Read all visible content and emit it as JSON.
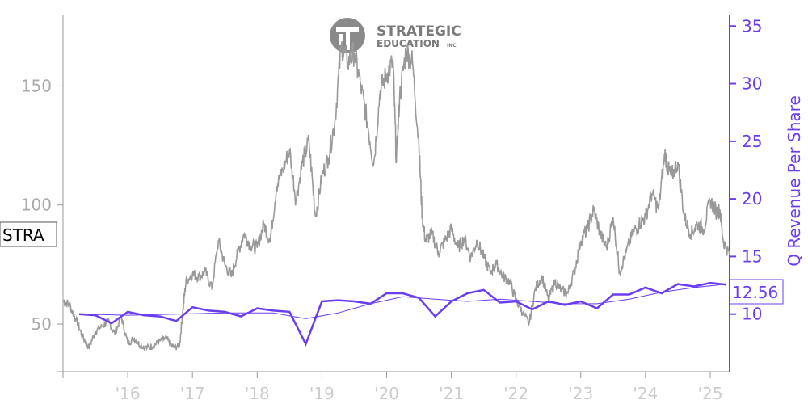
{
  "chart_data": {
    "type": "line",
    "title": "",
    "logo": {
      "icon": "strategic-education-logo-icon",
      "line1": "STRATEGIC",
      "line2": "EDUCATION",
      "suffix": "INC"
    },
    "ticker": "STRA",
    "last_value_label": "12.56",
    "x_tick_labels": [
      "'16",
      "'17",
      "'18",
      "'19",
      "'20",
      "'21",
      "'22",
      "'23",
      "'24",
      "'25"
    ],
    "xlim": [
      2015.0,
      2025.3
    ],
    "y_left": {
      "lim": [
        30,
        180
      ],
      "ticks": [
        50,
        100,
        150
      ],
      "color": "#aaaaaa"
    },
    "y_right": {
      "label": "Q Revenue Per Share",
      "lim": [
        5,
        36
      ],
      "ticks": [
        10,
        15,
        20,
        25,
        30,
        35
      ],
      "color": "#6a3df0"
    },
    "price_series": {
      "color": "#999999",
      "x": [
        2015.0,
        2015.1,
        2015.2,
        2015.3,
        2015.4,
        2015.5,
        2015.6,
        2015.7,
        2015.8,
        2015.9,
        2016.0,
        2016.1,
        2016.2,
        2016.3,
        2016.4,
        2016.5,
        2016.6,
        2016.7,
        2016.8,
        2016.85,
        2016.9,
        2017.0,
        2017.1,
        2017.2,
        2017.3,
        2017.4,
        2017.5,
        2017.6,
        2017.7,
        2017.8,
        2017.9,
        2018.0,
        2018.1,
        2018.2,
        2018.3,
        2018.4,
        2018.5,
        2018.6,
        2018.7,
        2018.8,
        2018.9,
        2019.0,
        2019.1,
        2019.2,
        2019.3,
        2019.4,
        2019.5,
        2019.6,
        2019.7,
        2019.8,
        2019.9,
        2020.0,
        2020.1,
        2020.15,
        2020.2,
        2020.3,
        2020.4,
        2020.5,
        2020.55,
        2020.6,
        2020.7,
        2020.8,
        2020.9,
        2021.0,
        2021.1,
        2021.2,
        2021.3,
        2021.4,
        2021.5,
        2021.6,
        2021.7,
        2021.8,
        2021.9,
        2022.0,
        2022.1,
        2022.2,
        2022.3,
        2022.4,
        2022.5,
        2022.6,
        2022.7,
        2022.8,
        2022.9,
        2023.0,
        2023.1,
        2023.2,
        2023.3,
        2023.4,
        2023.5,
        2023.6,
        2023.7,
        2023.8,
        2023.9,
        2024.0,
        2024.1,
        2024.2,
        2024.3,
        2024.35,
        2024.4,
        2024.5,
        2024.6,
        2024.7,
        2024.8,
        2024.9,
        2025.0,
        2025.1,
        2025.15,
        2025.2,
        2025.3
      ],
      "y": [
        60,
        58,
        52,
        45,
        40,
        47,
        49,
        51,
        46,
        53,
        42,
        44,
        41,
        40,
        41,
        43,
        44,
        40,
        41,
        55,
        68,
        71,
        70,
        72,
        65,
        85,
        75,
        70,
        80,
        88,
        83,
        82,
        92,
        85,
        108,
        115,
        123,
        102,
        118,
        127,
        95,
        112,
        120,
        135,
        167,
        160,
        164,
        150,
        135,
        117,
        148,
        155,
        160,
        118,
        145,
        165,
        160,
        125,
        95,
        85,
        88,
        80,
        85,
        90,
        82,
        86,
        78,
        85,
        78,
        72,
        75,
        70,
        68,
        60,
        55,
        50,
        65,
        70,
        60,
        68,
        64,
        63,
        72,
        85,
        90,
        98,
        88,
        82,
        95,
        72,
        80,
        88,
        92,
        95,
        105,
        98,
        122,
        115,
        112,
        118,
        95,
        88,
        92,
        90,
        102,
        97,
        98,
        85,
        79
      ]
    },
    "revenue_series": {
      "color": "#6a3df0",
      "x": [
        2015.25,
        2015.5,
        2015.75,
        2016.0,
        2016.25,
        2016.5,
        2016.75,
        2017.0,
        2017.25,
        2017.5,
        2017.75,
        2018.0,
        2018.25,
        2018.5,
        2018.75,
        2019.0,
        2019.25,
        2019.5,
        2019.75,
        2020.0,
        2020.25,
        2020.5,
        2020.75,
        2021.0,
        2021.25,
        2021.5,
        2021.75,
        2022.0,
        2022.25,
        2022.5,
        2022.75,
        2023.0,
        2023.25,
        2023.5,
        2023.75,
        2024.0,
        2024.25,
        2024.5,
        2024.75,
        2025.0,
        2025.25
      ],
      "y": [
        10.0,
        9.9,
        9.2,
        10.2,
        9.9,
        9.8,
        9.4,
        10.6,
        10.3,
        10.2,
        9.8,
        10.5,
        10.3,
        10.2,
        7.4,
        11.1,
        11.2,
        11.1,
        10.9,
        11.8,
        11.8,
        11.4,
        9.8,
        11.1,
        11.8,
        12.1,
        11.0,
        11.1,
        10.4,
        11.1,
        10.8,
        11.1,
        10.5,
        11.7,
        11.7,
        12.3,
        11.8,
        12.6,
        12.4,
        12.7,
        12.56
      ]
    },
    "revenue_trend": {
      "color": "#6a3df0",
      "x": [
        2015.25,
        2016.0,
        2016.75,
        2017.5,
        2018.25,
        2018.75,
        2019.25,
        2019.75,
        2020.25,
        2020.75,
        2021.25,
        2021.75,
        2022.25,
        2022.75,
        2023.25,
        2023.75,
        2024.25,
        2024.75,
        2025.25
      ],
      "y": [
        10.0,
        9.9,
        10.0,
        10.1,
        10.1,
        9.6,
        10.1,
        10.9,
        11.5,
        11.3,
        11.1,
        11.3,
        11.1,
        10.9,
        10.9,
        11.3,
        11.9,
        12.3,
        12.6
      ]
    }
  }
}
